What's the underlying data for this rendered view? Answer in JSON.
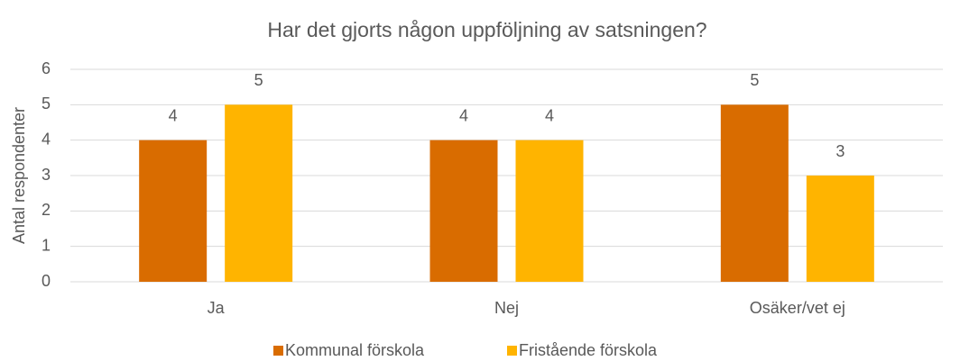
{
  "chart_data": {
    "type": "bar",
    "title": "Har det gjorts någon uppföljning av satsningen?",
    "y_label": "Antal respondenter",
    "categories": [
      "Ja",
      "Nej",
      "Osäker/vet ej"
    ],
    "series": [
      {
        "name": "Kommunal förskola",
        "color": "#d96c00",
        "values": [
          4,
          4,
          5
        ]
      },
      {
        "name": "Fristående förskola",
        "color": "#ffb400",
        "values": [
          5,
          4,
          3
        ]
      }
    ],
    "ylim": [
      0,
      6
    ],
    "yticks": [
      0,
      1,
      2,
      3,
      4,
      5,
      6
    ],
    "grid": true,
    "legend": "bottom"
  }
}
